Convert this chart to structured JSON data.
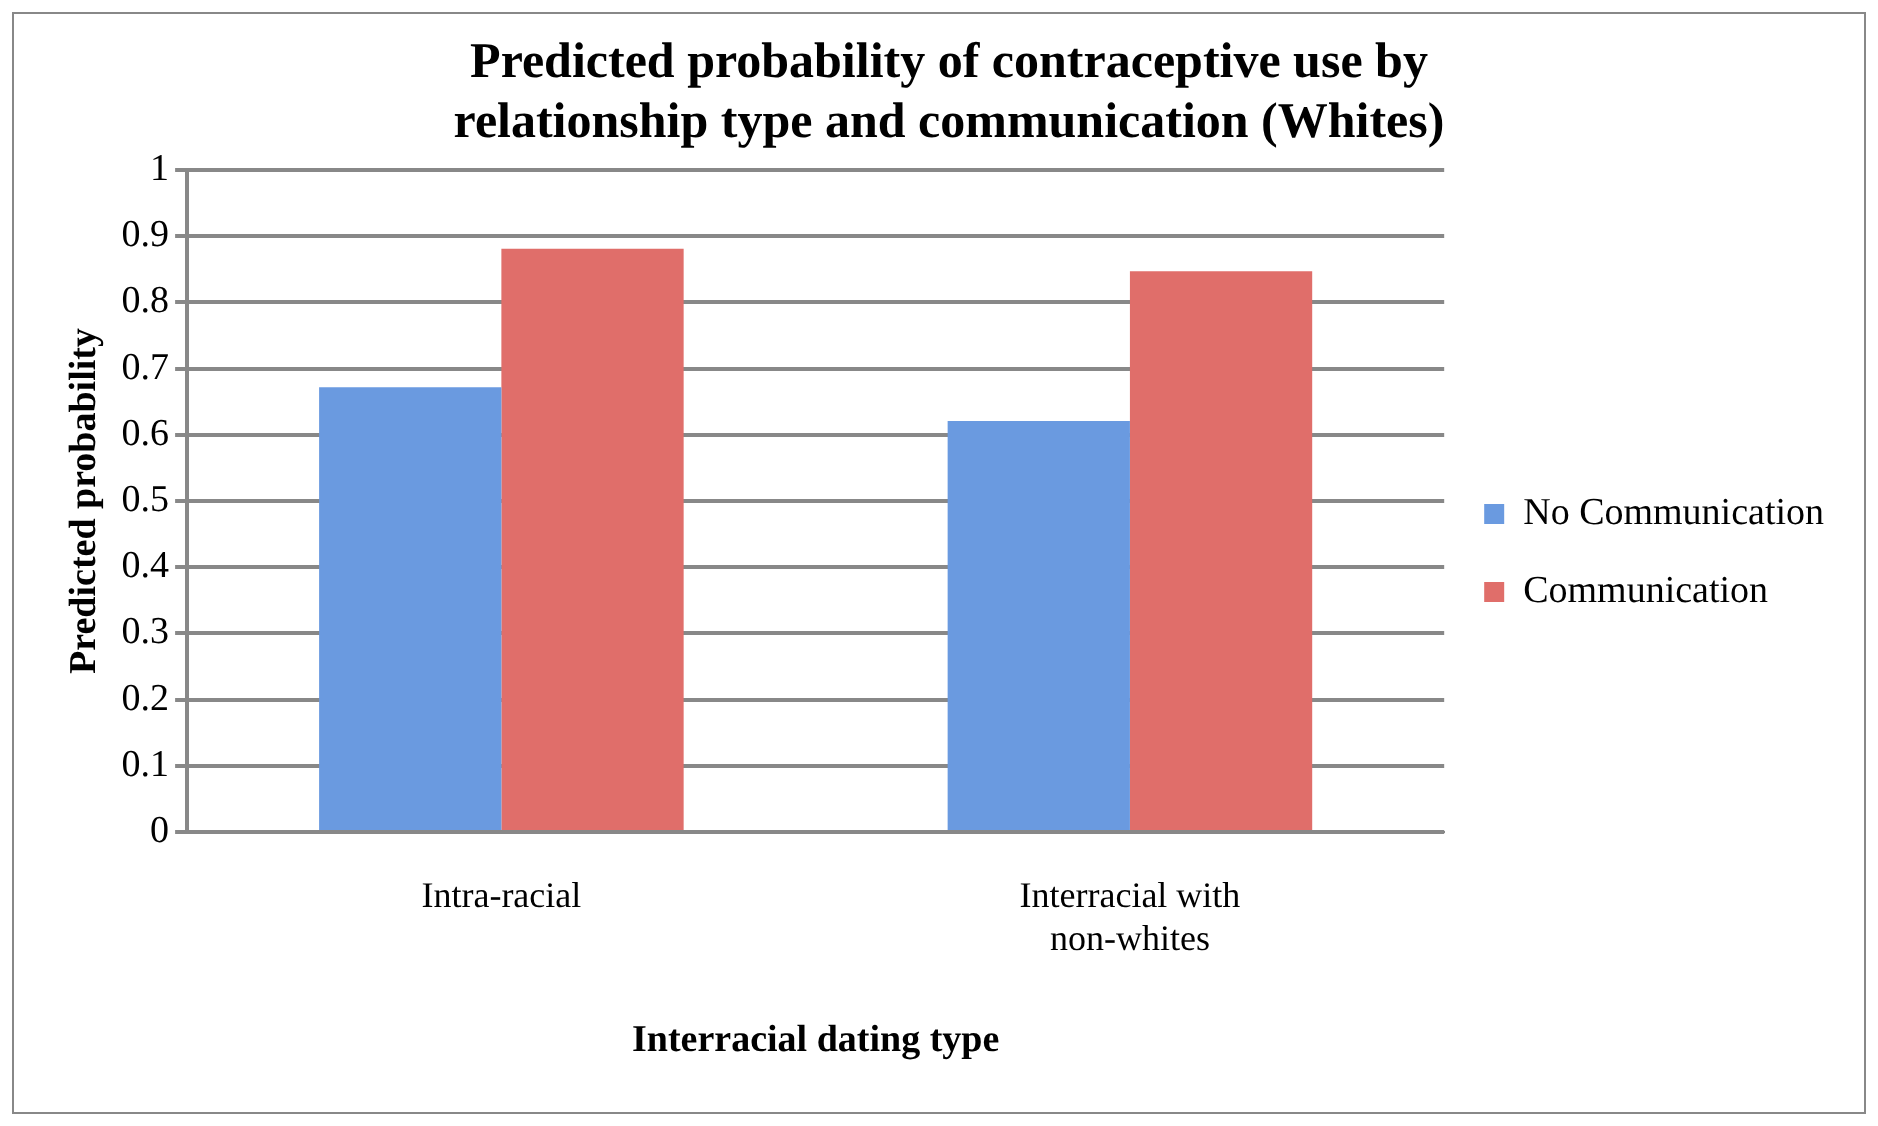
{
  "chart_data": {
    "type": "bar",
    "title": "Predicted probability of contraceptive use by relationship type and communication (Whites)",
    "xlabel": "Interracial dating type",
    "ylabel": "Predicted probability",
    "categories": [
      "Intra-racial",
      "Interracial with non-whites"
    ],
    "series": [
      {
        "name": "No Communication",
        "color": "#6a9ae0",
        "values": [
          0.672,
          0.621
        ]
      },
      {
        "name": "Communication",
        "color": "#e06e6a",
        "values": [
          0.881,
          0.847
        ]
      }
    ],
    "ylim": [
      0,
      1
    ],
    "yticks": [
      0,
      0.1,
      0.2,
      0.3,
      0.4,
      0.5,
      0.6,
      0.7,
      0.8,
      0.9,
      1
    ],
    "grid": "y",
    "legend": "right"
  }
}
